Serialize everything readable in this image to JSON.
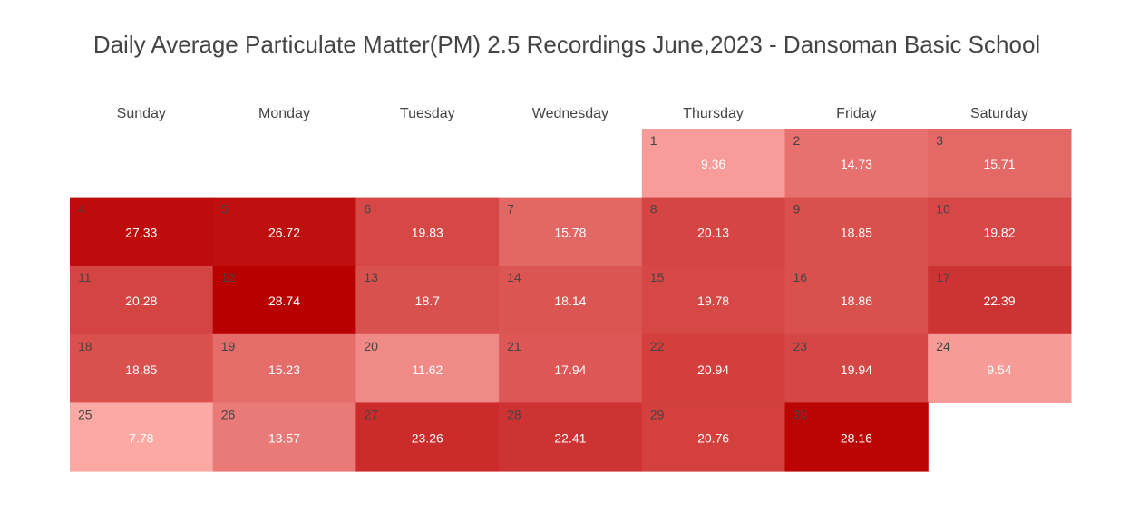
{
  "chart_data": {
    "type": "heatmap",
    "title": "Daily Average Particulate Matter(PM) 2.5 Recordings June,2023 - Dansoman Basic School",
    "weekdays": [
      "Sunday",
      "Monday",
      "Tuesday",
      "Wednesday",
      "Thursday",
      "Friday",
      "Saturday"
    ],
    "first_weekday_index": 4,
    "days": [
      1,
      2,
      3,
      4,
      5,
      6,
      7,
      8,
      9,
      10,
      11,
      12,
      13,
      14,
      15,
      16,
      17,
      18,
      19,
      20,
      21,
      22,
      23,
      24,
      25,
      26,
      27,
      28,
      29,
      30
    ],
    "values": [
      9.36,
      14.73,
      15.71,
      27.33,
      26.72,
      19.83,
      15.78,
      20.13,
      18.85,
      19.82,
      20.28,
      28.74,
      18.7,
      18.14,
      19.78,
      18.86,
      22.39,
      18.85,
      15.23,
      11.62,
      17.94,
      20.94,
      19.94,
      9.54,
      7.78,
      13.57,
      23.26,
      22.41,
      20.76,
      28.16
    ],
    "value_labels": [
      "9.36",
      "14.73",
      "15.71",
      "27.33",
      "26.72",
      "19.83",
      "15.78",
      "20.13",
      "18.85",
      "19.82",
      "20.28",
      "28.74",
      "18.7",
      "18.14",
      "19.78",
      "18.86",
      "22.39",
      "18.85",
      "15.23",
      "11.62",
      "17.94",
      "20.94",
      "19.94",
      "9.54",
      "7.78",
      "13.57",
      "23.26",
      "22.41",
      "20.76",
      "28.16"
    ],
    "color_low": "#fca9a4",
    "color_high": "#b90000"
  }
}
